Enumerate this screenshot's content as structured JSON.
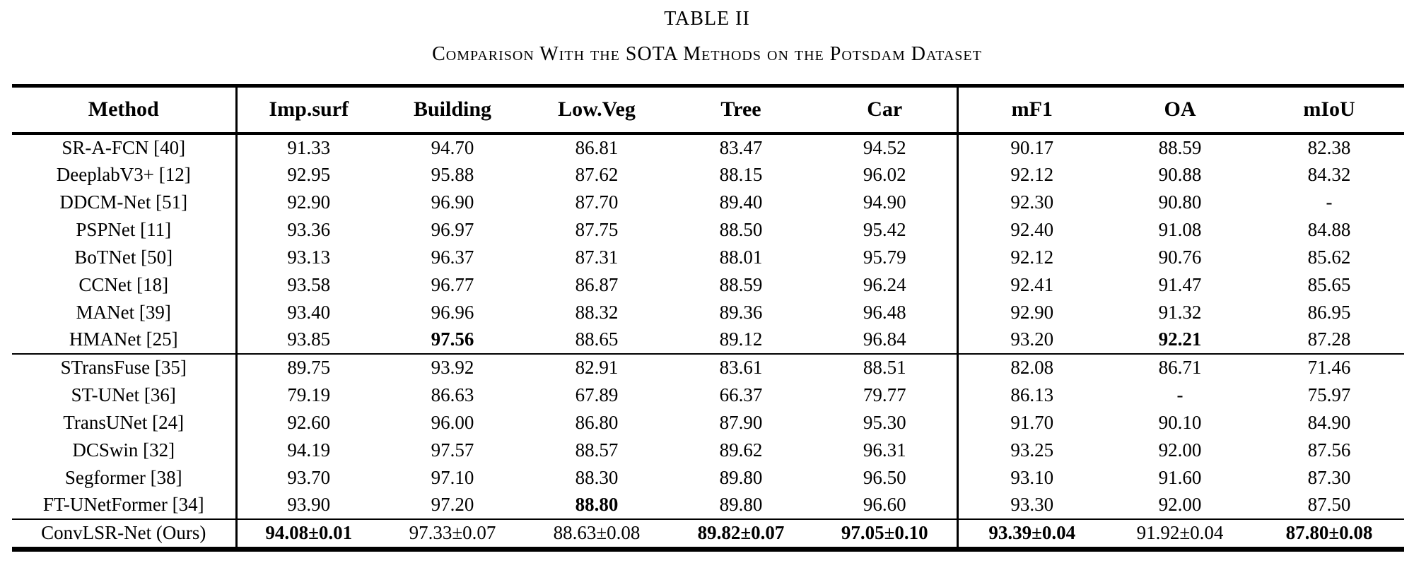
{
  "page": {
    "title": "TABLE II",
    "subtitle": "Comparison With the SOTA Methods on the Potsdam Dataset"
  },
  "table": {
    "columns": [
      "Method",
      "Imp.surf",
      "Building",
      "Low.Veg",
      "Tree",
      "Car",
      "mF1",
      "OA",
      "mIoU"
    ],
    "groups": [
      {
        "name": "cnn-methods",
        "rows": [
          {
            "method": "SR-A-FCN [40]",
            "values": [
              "91.33",
              "94.70",
              "86.81",
              "83.47",
              "94.52",
              "90.17",
              "88.59",
              "82.38"
            ],
            "bold": []
          },
          {
            "method": "DeeplabV3+ [12]",
            "values": [
              "92.95",
              "95.88",
              "87.62",
              "88.15",
              "96.02",
              "92.12",
              "90.88",
              "84.32"
            ],
            "bold": []
          },
          {
            "method": "DDCM-Net [51]",
            "values": [
              "92.90",
              "96.90",
              "87.70",
              "89.40",
              "94.90",
              "92.30",
              "90.80",
              "-"
            ],
            "bold": []
          },
          {
            "method": "PSPNet [11]",
            "values": [
              "93.36",
              "96.97",
              "87.75",
              "88.50",
              "95.42",
              "92.40",
              "91.08",
              "84.88"
            ],
            "bold": []
          },
          {
            "method": "BoTNet [50]",
            "values": [
              "93.13",
              "96.37",
              "87.31",
              "88.01",
              "95.79",
              "92.12",
              "90.76",
              "85.62"
            ],
            "bold": []
          },
          {
            "method": "CCNet [18]",
            "values": [
              "93.58",
              "96.77",
              "86.87",
              "88.59",
              "96.24",
              "92.41",
              "91.47",
              "85.65"
            ],
            "bold": []
          },
          {
            "method": "MANet [39]",
            "values": [
              "93.40",
              "96.96",
              "88.32",
              "89.36",
              "96.48",
              "92.90",
              "91.32",
              "86.95"
            ],
            "bold": []
          },
          {
            "method": "HMANet [25]",
            "values": [
              "93.85",
              "97.56",
              "88.65",
              "89.12",
              "96.84",
              "93.20",
              "92.21",
              "87.28"
            ],
            "bold": [
              1,
              6
            ]
          }
        ]
      },
      {
        "name": "transformer-methods",
        "rows": [
          {
            "method": "STransFuse [35]",
            "values": [
              "89.75",
              "93.92",
              "82.91",
              "83.61",
              "88.51",
              "82.08",
              "86.71",
              "71.46"
            ],
            "bold": []
          },
          {
            "method": "ST-UNet [36]",
            "values": [
              "79.19",
              "86.63",
              "67.89",
              "66.37",
              "79.77",
              "86.13",
              "-",
              "75.97"
            ],
            "bold": []
          },
          {
            "method": "TransUNet [24]",
            "values": [
              "92.60",
              "96.00",
              "86.80",
              "87.90",
              "95.30",
              "91.70",
              "90.10",
              "84.90"
            ],
            "bold": []
          },
          {
            "method": "DCSwin [32]",
            "values": [
              "94.19",
              "97.57",
              "88.57",
              "89.62",
              "96.31",
              "93.25",
              "92.00",
              "87.56"
            ],
            "bold": []
          },
          {
            "method": "Segformer [38]",
            "values": [
              "93.70",
              "97.10",
              "88.30",
              "89.80",
              "96.50",
              "93.10",
              "91.60",
              "87.30"
            ],
            "bold": []
          },
          {
            "method": "FT-UNetFormer [34]",
            "values": [
              "93.90",
              "97.20",
              "88.80",
              "89.80",
              "96.60",
              "93.30",
              "92.00",
              "87.50"
            ],
            "bold": [
              2
            ]
          }
        ]
      },
      {
        "name": "ours",
        "rows": [
          {
            "method": "ConvLSR-Net (Ours)",
            "values": [
              "94.08±0.01",
              "97.33±0.07",
              "88.63±0.08",
              "89.82±0.07",
              "97.05±0.10",
              "93.39±0.04",
              "91.92±0.04",
              "87.80±0.08"
            ],
            "bold": [
              0,
              3,
              4,
              5,
              7
            ]
          }
        ]
      }
    ]
  }
}
